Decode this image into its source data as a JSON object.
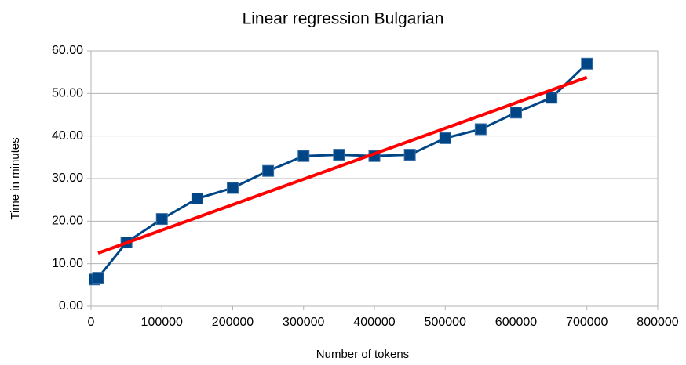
{
  "chart_data": {
    "type": "line",
    "title": "Linear regression Bulgarian",
    "x_label": "Number of tokens",
    "y_label": "Time in minutes",
    "xlim": [
      0,
      800000
    ],
    "xticks": [
      0,
      100000,
      200000,
      300000,
      400000,
      500000,
      600000,
      700000,
      800000
    ],
    "ylim": [
      0,
      60
    ],
    "yticks": [
      {
        "value": 0,
        "label": "0.00"
      },
      {
        "value": 10,
        "label": "10.00"
      },
      {
        "value": 20,
        "label": "20.00"
      },
      {
        "value": 30,
        "label": "30.00"
      },
      {
        "value": 40,
        "label": "40.00"
      },
      {
        "value": 50,
        "label": "50.00"
      },
      {
        "value": 60,
        "label": "60.00"
      }
    ],
    "grid": true,
    "series": [
      {
        "color": "#004586",
        "markers": true,
        "x": [
          5000,
          10000,
          50000,
          100000,
          150000,
          200000,
          250000,
          300000,
          350000,
          400000,
          450000,
          500000,
          550000,
          600000,
          650000,
          700000
        ],
        "values": [
          6.3,
          6.7,
          15.0,
          20.5,
          25.3,
          27.8,
          31.8,
          35.3,
          35.6,
          35.3,
          35.6,
          39.5,
          41.6,
          45.5,
          49.0,
          57.0
        ]
      },
      {
        "color": "#ff0000",
        "markers": false,
        "x": [
          10000,
          700000
        ],
        "values": [
          12.5,
          53.8
        ]
      }
    ]
  }
}
